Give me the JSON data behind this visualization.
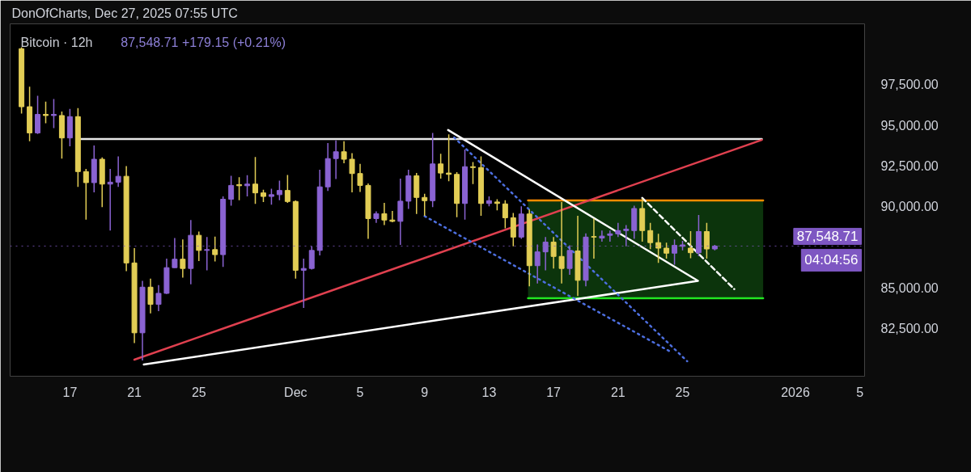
{
  "chart_data": {
    "type": "candlestick",
    "title": "Bitcoin · 12h",
    "subtitle": "87,548.71  +179.15 (+0.21%)",
    "annotations": [
      "DonOfCharts, Dec 27, 2025 07:55 UTC",
      {
        "text": "04:04:56",
        "y": 87548.71
      }
    ],
    "x": [
      "2025-11-14T00:00",
      "2025-11-14T12:00",
      "2025-11-15T00:00",
      "2025-11-15T12:00",
      "2025-11-16T00:00",
      "2025-11-16T12:00",
      "2025-11-17T00:00",
      "2025-11-17T12:00",
      "2025-11-18T00:00",
      "2025-11-18T12:00",
      "2025-11-19T00:00",
      "2025-11-19T12:00",
      "2025-11-20T00:00",
      "2025-11-20T12:00",
      "2025-11-21T00:00",
      "2025-11-21T12:00",
      "2025-11-22T00:00",
      "2025-11-22T12:00",
      "2025-11-23T00:00",
      "2025-11-23T12:00",
      "2025-11-24T00:00",
      "2025-11-24T12:00",
      "2025-11-25T00:00",
      "2025-11-25T12:00",
      "2025-11-26T00:00",
      "2025-11-26T12:00",
      "2025-11-27T00:00",
      "2025-11-27T12:00",
      "2025-11-28T00:00",
      "2025-11-28T12:00",
      "2025-11-29T00:00",
      "2025-11-29T12:00",
      "2025-11-30T00:00",
      "2025-11-30T12:00",
      "2025-12-01T00:00",
      "2025-12-01T12:00",
      "2025-12-02T00:00",
      "2025-12-02T12:00",
      "2025-12-03T00:00",
      "2025-12-03T12:00",
      "2025-12-04T00:00",
      "2025-12-04T12:00",
      "2025-12-05T00:00",
      "2025-12-05T12:00",
      "2025-12-06T00:00",
      "2025-12-06T12:00",
      "2025-12-07T00:00",
      "2025-12-07T12:00",
      "2025-12-08T00:00",
      "2025-12-08T12:00",
      "2025-12-09T00:00",
      "2025-12-09T12:00",
      "2025-12-10T00:00",
      "2025-12-10T12:00",
      "2025-12-11T00:00",
      "2025-12-11T12:00",
      "2025-12-12T00:00",
      "2025-12-12T12:00",
      "2025-12-13T00:00",
      "2025-12-13T12:00",
      "2025-12-14T00:00",
      "2025-12-14T12:00",
      "2025-12-15T00:00",
      "2025-12-15T12:00",
      "2025-12-16T00:00",
      "2025-12-16T12:00",
      "2025-12-17T00:00",
      "2025-12-17T12:00",
      "2025-12-18T00:00",
      "2025-12-18T12:00",
      "2025-12-19T00:00",
      "2025-12-19T12:00",
      "2025-12-20T00:00",
      "2025-12-20T12:00",
      "2025-12-21T00:00",
      "2025-12-21T12:00",
      "2025-12-22T00:00",
      "2025-12-22T12:00",
      "2025-12-23T00:00",
      "2025-12-23T12:00",
      "2025-12-24T00:00",
      "2025-12-24T12:00",
      "2025-12-25T00:00",
      "2025-12-25T12:00",
      "2025-12-26T00:00",
      "2025-12-26T12:00",
      "2025-12-27T00:00"
    ],
    "ohlc": [
      [
        99690,
        99780,
        95700,
        96120
      ],
      [
        96120,
        97350,
        94000,
        94510
      ],
      [
        94510,
        96800,
        94450,
        95650
      ],
      [
        95650,
        96430,
        95100,
        95580
      ],
      [
        95580,
        96600,
        94800,
        95650
      ],
      [
        95580,
        95820,
        92930,
        94200
      ],
      [
        94200,
        95990,
        93690,
        95510
      ],
      [
        95510,
        96040,
        91190,
        92130
      ],
      [
        92130,
        92300,
        89180,
        91450
      ],
      [
        91450,
        93740,
        90850,
        92890
      ],
      [
        92890,
        93000,
        89950,
        91360
      ],
      [
        91360,
        92300,
        88500,
        91480
      ],
      [
        91480,
        93060,
        91190,
        91840
      ],
      [
        91840,
        92470,
        86000,
        86510
      ],
      [
        86510,
        87420,
        81580,
        82210
      ],
      [
        82210,
        85410,
        80510,
        85020
      ],
      [
        85020,
        85540,
        83400,
        83960
      ],
      [
        83960,
        85150,
        83540,
        84640
      ],
      [
        84640,
        86770,
        84600,
        86220
      ],
      [
        86220,
        88040,
        86200,
        86740
      ],
      [
        86740,
        87960,
        85610,
        86170
      ],
      [
        86170,
        89150,
        85200,
        88210
      ],
      [
        88210,
        88440,
        86630,
        87280
      ],
      [
        87280,
        88100,
        86050,
        87330
      ],
      [
        87330,
        88130,
        86600,
        87020
      ],
      [
        87020,
        90600,
        86260,
        90430
      ],
      [
        90430,
        91870,
        90030,
        91280
      ],
      [
        91330,
        91790,
        90370,
        91260
      ],
      [
        91260,
        91910,
        90600,
        91360
      ],
      [
        91360,
        93030,
        90140,
        90820
      ],
      [
        90820,
        91020,
        90260,
        90600
      ],
      [
        90600,
        91070,
        90090,
        90710
      ],
      [
        90710,
        91570,
        90370,
        90970
      ],
      [
        90970,
        91920,
        90200,
        90290
      ],
      [
        90290,
        90350,
        85540,
        86060
      ],
      [
        86060,
        86770,
        83740,
        86170
      ],
      [
        86170,
        87530,
        86100,
        87280
      ],
      [
        87280,
        92250,
        86970,
        91190
      ],
      [
        91190,
        93880,
        90940,
        92930
      ],
      [
        92930,
        94050,
        91670,
        93350
      ],
      [
        93350,
        94000,
        92640,
        92890
      ],
      [
        92890,
        93270,
        90850,
        92010
      ],
      [
        92010,
        92600,
        90880,
        91280
      ],
      [
        91280,
        91400,
        87990,
        89240
      ],
      [
        89240,
        89690,
        88980,
        89540
      ],
      [
        89540,
        90200,
        88840,
        89150
      ],
      [
        89150,
        89710,
        89010,
        89070
      ],
      [
        89070,
        91700,
        87620,
        90310
      ],
      [
        90310,
        92250,
        89830,
        91870
      ],
      [
        91870,
        92040,
        89520,
        90540
      ],
      [
        90540,
        90770,
        89410,
        90340
      ],
      [
        90340,
        94510,
        89950,
        92600
      ],
      [
        92600,
        93230,
        91700,
        92040
      ],
      [
        92040,
        94420,
        91530,
        91960
      ],
      [
        91960,
        92100,
        89320,
        90170
      ],
      [
        90170,
        93490,
        89180,
        92430
      ],
      [
        92430,
        92720,
        91360,
        92380
      ],
      [
        92380,
        93060,
        89410,
        90170
      ],
      [
        90170,
        90600,
        90000,
        90340
      ],
      [
        90260,
        90430,
        89750,
        90170
      ],
      [
        90140,
        90370,
        88640,
        89290
      ],
      [
        89290,
        89580,
        87530,
        88100
      ],
      [
        88100,
        90000,
        87990,
        89520
      ],
      [
        89520,
        89800,
        85070,
        86340
      ],
      [
        86340,
        87650,
        85240,
        87190
      ],
      [
        87190,
        88100,
        86050,
        87790
      ],
      [
        87790,
        88100,
        86170,
        86910
      ],
      [
        86910,
        90260,
        85240,
        86170
      ],
      [
        86170,
        87590,
        85780,
        87280
      ],
      [
        87250,
        89410,
        84470,
        85440
      ],
      [
        85440,
        88330,
        85070,
        88100
      ],
      [
        88130,
        89240,
        86770,
        88100
      ],
      [
        88040,
        88500,
        87820,
        88160
      ],
      [
        88210,
        88500,
        87820,
        88300
      ],
      [
        88300,
        88980,
        88100,
        88500
      ],
      [
        88500,
        88840,
        87530,
        88590
      ],
      [
        88500,
        90030,
        87990,
        89860
      ],
      [
        89860,
        90480,
        87820,
        88500
      ],
      [
        88500,
        88980,
        87360,
        87760
      ],
      [
        87760,
        88300,
        86510,
        87420
      ],
      [
        87420,
        87760,
        86770,
        87110
      ],
      [
        87110,
        87960,
        86400,
        87590
      ],
      [
        87530,
        87870,
        87280,
        87620
      ],
      [
        87420,
        88470,
        86800,
        87140
      ],
      [
        87140,
        89460,
        86940,
        88440
      ],
      [
        88440,
        88980,
        86770,
        87370
      ],
      [
        87370,
        87620,
        87280,
        87548.71
      ]
    ],
    "colors": [
      "#e2cd55",
      "#e2cd55",
      "#8a63d2",
      "#e2cd55",
      "#8a63d2",
      "#e2cd55",
      "#8a63d2",
      "#e2cd55",
      "#e2cd55",
      "#8a63d2",
      "#e2cd55",
      "#8a63d2",
      "#8a63d2",
      "#e2cd55",
      "#e2cd55",
      "#8a63d2",
      "#e2cd55",
      "#8a63d2",
      "#8a63d2",
      "#8a63d2",
      "#e2cd55",
      "#8a63d2",
      "#e2cd55",
      "#8a63d2",
      "#e2cd55",
      "#8a63d2",
      "#8a63d2",
      "#e2cd55",
      "#8a63d2",
      "#e2cd55",
      "#e2cd55",
      "#8a63d2",
      "#8a63d2",
      "#e2cd55",
      "#e2cd55",
      "#8a63d2",
      "#8a63d2",
      "#8a63d2",
      "#8a63d2",
      "#8a63d2",
      "#e2cd55",
      "#e2cd55",
      "#e2cd55",
      "#e2cd55",
      "#8a63d2",
      "#e2cd55",
      "#e2cd55",
      "#8a63d2",
      "#8a63d2",
      "#e2cd55",
      "#e2cd55",
      "#8a63d2",
      "#e2cd55",
      "#e2cd55",
      "#e2cd55",
      "#8a63d2",
      "#e2cd55",
      "#e2cd55",
      "#8a63d2",
      "#e2cd55",
      "#e2cd55",
      "#e2cd55",
      "#8a63d2",
      "#e2cd55",
      "#8a63d2",
      "#8a63d2",
      "#e2cd55",
      "#e2cd55",
      "#8a63d2",
      "#e2cd55",
      "#8a63d2",
      "#e2cd55",
      "#8a63d2",
      "#8a63d2",
      "#8a63d2",
      "#8a63d2",
      "#8a63d2",
      "#e2cd55",
      "#e2cd55",
      "#e2cd55",
      "#e2cd55",
      "#8a63d2",
      "#8a63d2",
      "#e2cd55",
      "#8a63d2",
      "#e2cd55",
      "#8a63d2"
    ],
    "series": [
      {
        "type": "line",
        "x": [
          "2025-12-15T10:00",
          "2025-12-30T00:00"
        ],
        "values": [
          90360,
          90360
        ],
        "lower": [
          84340,
          84340
        ],
        "upper": [
          90360,
          90360
        ],
        "color": "#ff8c00"
      },
      {
        "type": "line",
        "x": [
          "2025-12-15T10:00",
          "2025-12-30T00:00"
        ],
        "values": [
          84340,
          84340
        ],
        "color": "#22e622"
      },
      {
        "type": "line",
        "x": [
          "2025-11-17T13:00",
          "2025-12-29T22:00"
        ],
        "values": [
          94130,
          94130
        ],
        "color": "#e8e8e8"
      },
      {
        "type": "line",
        "x": [
          "2025-11-21T00:00",
          "2025-12-29T22:00"
        ],
        "values": [
          80560,
          94080
        ],
        "color": "#e0404f"
      },
      {
        "type": "line",
        "x": [
          "2025-11-21T14:00",
          "2025-12-25T23:00",
          "2025-12-10T11:00"
        ],
        "values": [
          80260,
          85410,
          94690
        ],
        "color": "#ffffff"
      },
      {
        "type": "line",
        "x": [
          "2025-12-10T20:00",
          "2025-12-25T07:00"
        ],
        "values": [
          94230,
          80460
        ],
        "color": "#4d6fe0",
        "line_style": "dotted"
      },
      {
        "type": "line",
        "x": [
          "2025-12-09T00:00",
          "2025-12-24T05:00"
        ],
        "values": [
          89390,
          81070
        ],
        "color": "#4d6fe0",
        "line_style": "dotted"
      },
      {
        "type": "line",
        "x": [
          "2025-12-22T12:00",
          "2025-12-28T05:00"
        ],
        "values": [
          90510,
          84900
        ],
        "color": "#ffffff",
        "line_style": "dashed"
      }
    ],
    "ref_lines": [
      {
        "axis": "y",
        "value": 87548.71,
        "label": "87,548.71",
        "color": "#7e57c2",
        "line_style": "dotted"
      }
    ],
    "xlim": [
      "2025-11-13T07:00",
      "2026-01-05T07:00"
    ],
    "ylim": [
      79540,
      101220
    ],
    "xticks": [
      {
        "value": "2025-11-17",
        "label": "17"
      },
      {
        "value": "2025-11-21",
        "label": "21"
      },
      {
        "value": "2025-11-25",
        "label": "25"
      },
      {
        "value": "2025-12-01",
        "label": "Dec"
      },
      {
        "value": "2025-12-05",
        "label": "5"
      },
      {
        "value": "2025-12-09",
        "label": "9"
      },
      {
        "value": "2025-12-13",
        "label": "13"
      },
      {
        "value": "2025-12-17",
        "label": "17"
      },
      {
        "value": "2025-12-21",
        "label": "21"
      },
      {
        "value": "2025-12-25",
        "label": "25"
      },
      {
        "value": "2026-01-01",
        "label": "2026"
      },
      {
        "value": "2026-01-05",
        "label": "5"
      }
    ],
    "yticks": [
      {
        "value": 82500,
        "label": "82,500.00"
      },
      {
        "value": 85000,
        "label": "85,000.00"
      },
      {
        "value": 87500,
        "label": null
      },
      {
        "value": 90000,
        "label": "90,000.00"
      },
      {
        "value": 92500,
        "label": "92,500.00"
      },
      {
        "value": 95000,
        "label": "95,000.00"
      },
      {
        "value": 97500,
        "label": "97,500.00"
      }
    ]
  }
}
